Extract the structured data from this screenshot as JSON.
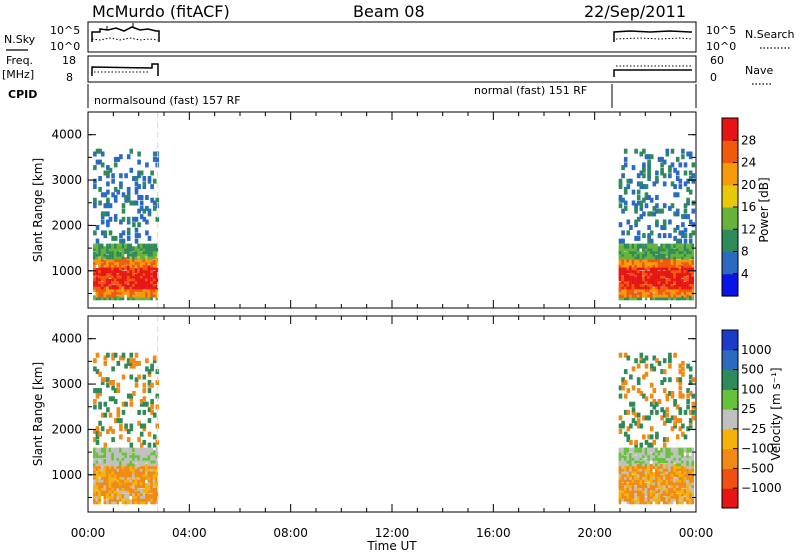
{
  "header": {
    "station": "McMurdo (fitACF)",
    "beam": "Beam 08",
    "date": "22/Sep/2011"
  },
  "top_panel_labels": {
    "nsky": "N.Sky",
    "nsky_ticks": [
      "10^5",
      "10^0"
    ],
    "nsearch": "N.Search",
    "nsearch_ticks": [
      "10^5",
      "10^0"
    ],
    "freq_top": "Freq.",
    "freq_bottom": "[MHz]",
    "freq_ticks": [
      "18",
      "8"
    ],
    "nave": "Nave",
    "nave_ticks": [
      "60",
      "0"
    ],
    "cpid": "CPID",
    "cpid_left": "normalsound (fast) 157 RF",
    "cpid_right": "normal (fast) 151 RF"
  },
  "chart_data": [
    {
      "type": "heatmap",
      "name": "power",
      "ylabel": "Slant Range [km]",
      "yticks": [
        "1000",
        "2000",
        "3000",
        "4000"
      ],
      "ylim": [
        180,
        4500
      ],
      "colorbar_label": "Power [dB]",
      "colorbar_ticks": [
        "4",
        "8",
        "12",
        "16",
        "20",
        "24",
        "28"
      ],
      "colors": [
        "#0a14e6",
        "#2a6ac0",
        "#2f8a5a",
        "#66b23a",
        "#e8c80a",
        "#f59a0a",
        "#f05a0a",
        "#e61414"
      ],
      "data_gaps_hours": [
        [
          2.7,
          20.9
        ]
      ]
    },
    {
      "type": "heatmap",
      "name": "velocity",
      "ylabel": "Slant Range [km]",
      "yticks": [
        "1000",
        "2000",
        "3000",
        "4000"
      ],
      "ylim": [
        180,
        4500
      ],
      "colorbar_label": "Velocity [m s⁻¹]",
      "colorbar_ticks": [
        "1000",
        "500",
        "100",
        "25",
        "−25",
        "−100",
        "−500",
        "−1000"
      ],
      "colors": [
        "#1a3cc8",
        "#2a6ac0",
        "#2f8a5a",
        "#66c23a",
        "#c0c0c0",
        "#f5b20a",
        "#f08a14",
        "#f05014",
        "#e61414"
      ],
      "data_gaps_hours": [
        [
          2.7,
          20.9
        ]
      ]
    }
  ],
  "xaxis": {
    "ticks": [
      "00:00",
      "04:00",
      "08:00",
      "12:00",
      "16:00",
      "20:00",
      "00:00"
    ],
    "label": "Time UT"
  }
}
